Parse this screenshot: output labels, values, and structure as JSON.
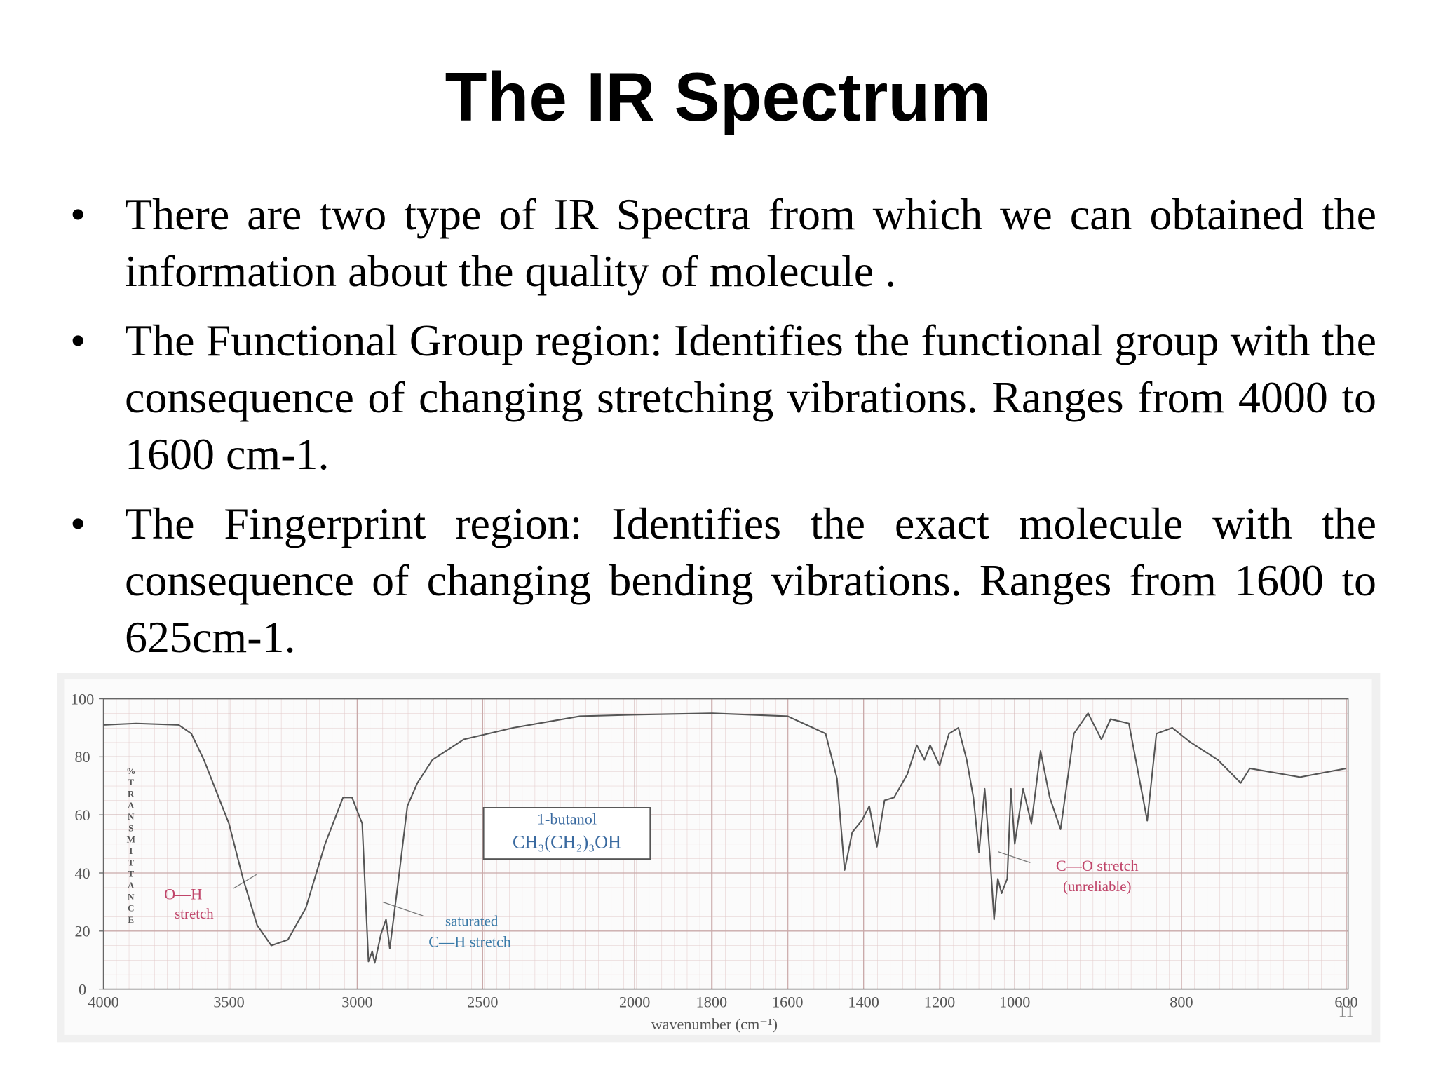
{
  "slide": {
    "title": "The IR Spectrum",
    "bullets": [
      "There are two type of IR Spectra from which we can obtained the information about the quality of molecule .",
      "The Functional Group region: Identifies the functional group with the consequence of changing stretching vibrations. Ranges from 4000 to 1600 cm-1.",
      "The Fingerprint region: Identifies the exact molecule with the consequence of changing bending vibrations. Ranges from 1600 to 625cm-1."
    ],
    "page_number": "11"
  },
  "chart_data": {
    "type": "line",
    "xlabel": "wavenumber (cm⁻¹)",
    "ylabel": "%TRANSMITTANCE",
    "annotations": [
      "1-butanol",
      "CH₃(CH₂)₃OH",
      "O—H",
      "stretch",
      "saturated",
      "C—H stretch",
      "C—O stretch",
      "(unreliable)"
    ],
    "color": "#555555",
    "grid": true,
    "xlim": [
      4000,
      600
    ],
    "xticks": [
      4000,
      3500,
      3000,
      2500,
      2000,
      1800,
      1600,
      1400,
      1200,
      1000,
      800,
      600
    ],
    "ylim": [
      0,
      100
    ],
    "yticks": [
      0,
      20,
      40,
      60,
      80,
      100
    ],
    "x": [
      4000,
      3870,
      3700,
      3650,
      3600,
      3500,
      3445,
      3390,
      3335,
      3270,
      3200,
      3125,
      3055,
      3020,
      2980,
      2955,
      2940,
      2930,
      2905,
      2885,
      2870,
      2835,
      2800,
      2760,
      2700,
      2575,
      2400,
      2180,
      2000,
      1800,
      1600,
      1500,
      1470,
      1450,
      1430,
      1405,
      1385,
      1365,
      1345,
      1320,
      1285,
      1260,
      1240,
      1225,
      1200,
      1175,
      1150,
      1128,
      1110,
      1095,
      1080,
      1065,
      1055,
      1045,
      1035,
      1020,
      1010,
      1000,
      990,
      980,
      969,
      958,
      945,
      929,
      912,
      896,
      885,
      863,
      841,
      830,
      811,
      789,
      756,
      728,
      717,
      656,
      600
    ],
    "values": [
      91,
      91.5,
      91,
      88,
      79,
      57,
      38,
      22,
      15,
      17,
      28,
      50,
      66,
      66,
      57,
      9.5,
      13,
      9,
      19,
      24,
      14,
      38,
      63,
      71,
      79,
      86,
      90,
      94,
      94.5,
      95,
      94,
      88,
      72.5,
      41,
      54,
      58,
      63,
      49,
      65,
      66,
      74,
      84,
      79,
      84,
      77,
      88,
      90,
      79,
      66,
      47,
      69,
      44,
      24,
      38,
      33,
      38,
      69,
      50,
      69,
      57,
      82,
      66,
      55,
      88,
      95,
      86,
      93,
      91.5,
      58,
      88,
      90,
      85,
      79,
      71,
      76,
      73,
      76
    ]
  }
}
